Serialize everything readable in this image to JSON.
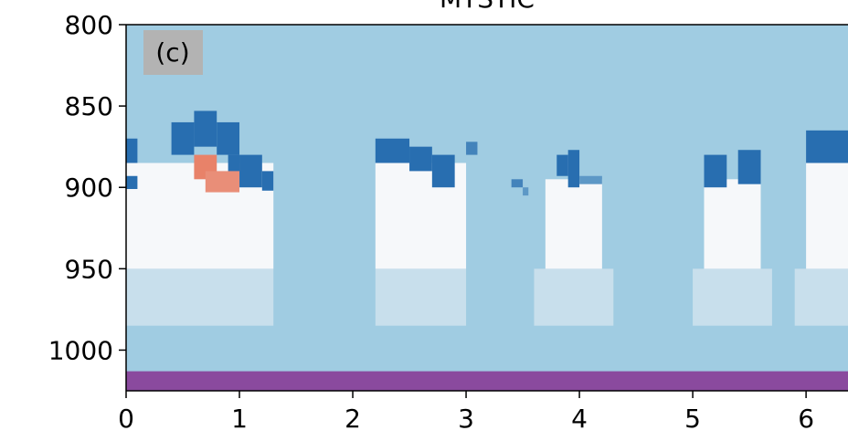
{
  "chart_data": {
    "type": "heatmap",
    "title": "MYSTIC",
    "annotation": "(c)",
    "xlim": [
      0,
      6.37
    ],
    "xticks": [
      0,
      1,
      2,
      3,
      4,
      5,
      6
    ],
    "ylim": [
      1025,
      800
    ],
    "yticks": [
      800,
      850,
      900,
      950,
      1000
    ],
    "background_value": -0.35,
    "patches": [
      {
        "x": [
          0.0,
          1.3
        ],
        "y": [
          950,
          985
        ],
        "value": -0.2
      },
      {
        "x": [
          2.2,
          3.0
        ],
        "y": [
          950,
          985
        ],
        "value": -0.2
      },
      {
        "x": [
          3.6,
          4.3
        ],
        "y": [
          950,
          985
        ],
        "value": -0.2
      },
      {
        "x": [
          5.0,
          5.7
        ],
        "y": [
          950,
          985
        ],
        "value": -0.2
      },
      {
        "x": [
          5.9,
          6.37
        ],
        "y": [
          950,
          985
        ],
        "value": -0.2
      },
      {
        "x": [
          0.0,
          1.3
        ],
        "y": [
          885,
          950
        ],
        "value": 0
      },
      {
        "x": [
          2.2,
          3.0
        ],
        "y": [
          885,
          950
        ],
        "value": 0
      },
      {
        "x": [
          3.7,
          4.2
        ],
        "y": [
          895,
          950
        ],
        "value": 0
      },
      {
        "x": [
          5.1,
          5.6
        ],
        "y": [
          895,
          950
        ],
        "value": 0
      },
      {
        "x": [
          6.0,
          6.37
        ],
        "y": [
          885,
          950
        ],
        "value": 0
      },
      {
        "x": [
          0.0,
          0.1
        ],
        "y": [
          870,
          885
        ],
        "value": -0.8
      },
      {
        "x": [
          0.0,
          0.1
        ],
        "y": [
          893,
          901
        ],
        "value": -0.8
      },
      {
        "x": [
          0.4,
          0.6
        ],
        "y": [
          860,
          880
        ],
        "value": -0.8
      },
      {
        "x": [
          0.6,
          0.8
        ],
        "y": [
          853,
          875
        ],
        "value": -0.8
      },
      {
        "x": [
          0.8,
          1.0
        ],
        "y": [
          860,
          880
        ],
        "value": -0.8
      },
      {
        "x": [
          0.9,
          1.0
        ],
        "y": [
          880,
          895
        ],
        "value": -0.8
      },
      {
        "x": [
          1.0,
          1.2
        ],
        "y": [
          880,
          900
        ],
        "value": -0.8
      },
      {
        "x": [
          1.2,
          1.3
        ],
        "y": [
          890,
          902
        ],
        "value": -0.8
      },
      {
        "x": [
          2.2,
          2.5
        ],
        "y": [
          870,
          885
        ],
        "value": -0.8
      },
      {
        "x": [
          2.5,
          2.7
        ],
        "y": [
          875,
          890
        ],
        "value": -0.8
      },
      {
        "x": [
          2.7,
          2.9
        ],
        "y": [
          880,
          900
        ],
        "value": -0.8
      },
      {
        "x": [
          3.0,
          3.1
        ],
        "y": [
          872,
          880
        ],
        "value": -0.7
      },
      {
        "x": [
          3.4,
          3.5
        ],
        "y": [
          895,
          900
        ],
        "value": -0.7
      },
      {
        "x": [
          3.5,
          3.55
        ],
        "y": [
          900,
          905
        ],
        "value": -0.6
      },
      {
        "x": [
          3.8,
          3.9
        ],
        "y": [
          880,
          893
        ],
        "value": -0.8
      },
      {
        "x": [
          3.9,
          4.0
        ],
        "y": [
          877,
          900
        ],
        "value": -0.8
      },
      {
        "x": [
          4.0,
          4.2
        ],
        "y": [
          893,
          898
        ],
        "value": -0.6
      },
      {
        "x": [
          5.1,
          5.3
        ],
        "y": [
          880,
          900
        ],
        "value": -0.8
      },
      {
        "x": [
          5.4,
          5.6
        ],
        "y": [
          877,
          898
        ],
        "value": -0.8
      },
      {
        "x": [
          6.0,
          6.37
        ],
        "y": [
          865,
          885
        ],
        "value": -0.8
      },
      {
        "x": [
          0.6,
          0.8
        ],
        "y": [
          880,
          895
        ],
        "value": 0.5
      },
      {
        "x": [
          0.7,
          1.0
        ],
        "y": [
          890,
          903
        ],
        "value": 0.45
      }
    ],
    "surface": {
      "y": [
        1013,
        1025
      ],
      "color": "#8a4a9e"
    }
  }
}
